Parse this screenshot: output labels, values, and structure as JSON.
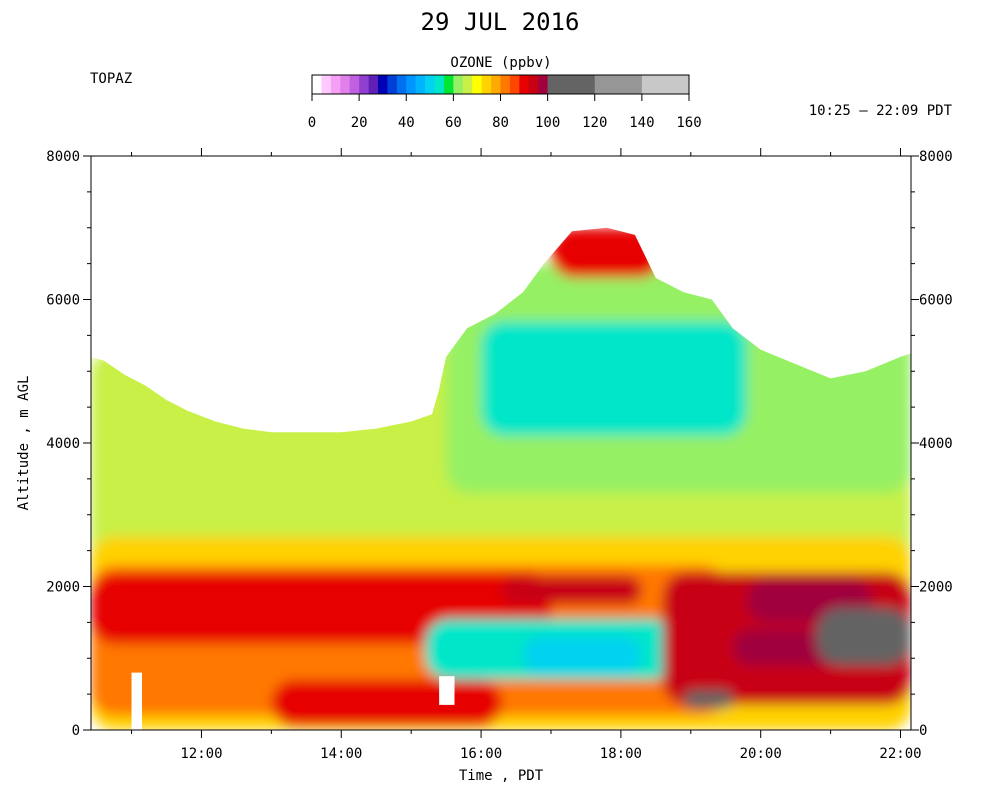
{
  "chart_data": {
    "type": "heatmap",
    "title": "29 JUL 2016",
    "site": "TOPAZ",
    "time_range_text": "10:25 – 22:09 PDT",
    "xlabel": "Time , PDT",
    "ylabel": "Altitude , m AGL",
    "x_range_hours": [
      10.42,
      22.15
    ],
    "x_ticks": [
      {
        "value": 12,
        "label": "12:00"
      },
      {
        "value": 14,
        "label": "14:00"
      },
      {
        "value": 16,
        "label": "16:00"
      },
      {
        "value": 18,
        "label": "18:00"
      },
      {
        "value": 20,
        "label": "20:00"
      },
      {
        "value": 22,
        "label": "22:00"
      }
    ],
    "ylim": [
      0,
      8000
    ],
    "y_ticks": [
      0,
      2000,
      4000,
      6000,
      8000
    ],
    "colorbar": {
      "title": "OZONE (ppbv)",
      "ticks": [
        0,
        20,
        40,
        60,
        80,
        100,
        120,
        140,
        160
      ],
      "bins": [
        {
          "from": 0,
          "to": 4,
          "color": "#ffffff"
        },
        {
          "from": 4,
          "to": 8,
          "color": "#ffc8ff"
        },
        {
          "from": 8,
          "to": 12,
          "color": "#f5a0f5"
        },
        {
          "from": 12,
          "to": 16,
          "color": "#e080e8"
        },
        {
          "from": 16,
          "to": 20,
          "color": "#c060e0"
        },
        {
          "from": 20,
          "to": 24,
          "color": "#9040d0"
        },
        {
          "from": 24,
          "to": 28,
          "color": "#6020b8"
        },
        {
          "from": 28,
          "to": 32,
          "color": "#0000b4"
        },
        {
          "from": 32,
          "to": 36,
          "color": "#0040d8"
        },
        {
          "from": 36,
          "to": 40,
          "color": "#0070ee"
        },
        {
          "from": 40,
          "to": 44,
          "color": "#0096ff"
        },
        {
          "from": 44,
          "to": 48,
          "color": "#00b4ff"
        },
        {
          "from": 48,
          "to": 52,
          "color": "#00d2f0"
        },
        {
          "from": 52,
          "to": 56,
          "color": "#00e6c8"
        },
        {
          "from": 56,
          "to": 60,
          "color": "#00e632"
        },
        {
          "from": 60,
          "to": 64,
          "color": "#96f064"
        },
        {
          "from": 64,
          "to": 68,
          "color": "#c8f046"
        },
        {
          "from": 68,
          "to": 72,
          "color": "#ffff00"
        },
        {
          "from": 72,
          "to": 76,
          "color": "#ffd200"
        },
        {
          "from": 76,
          "to": 80,
          "color": "#ffaa00"
        },
        {
          "from": 80,
          "to": 84,
          "color": "#ff7800"
        },
        {
          "from": 84,
          "to": 88,
          "color": "#ff4600"
        },
        {
          "from": 88,
          "to": 92,
          "color": "#e60000"
        },
        {
          "from": 92,
          "to": 96,
          "color": "#c80014"
        },
        {
          "from": 96,
          "to": 100,
          "color": "#a0003c"
        },
        {
          "from": 100,
          "to": 120,
          "color": "#646464"
        },
        {
          "from": 120,
          "to": 140,
          "color": "#969696"
        },
        {
          "from": 140,
          "to": 160,
          "color": "#c8c8c8"
        }
      ]
    },
    "data_top_profile": [
      [
        10.42,
        5200
      ],
      [
        10.6,
        5150
      ],
      [
        10.9,
        4950
      ],
      [
        11.2,
        4800
      ],
      [
        11.5,
        4600
      ],
      [
        11.8,
        4450
      ],
      [
        12.2,
        4300
      ],
      [
        12.6,
        4200
      ],
      [
        13.0,
        4150
      ],
      [
        13.5,
        4150
      ],
      [
        14.0,
        4150
      ],
      [
        14.5,
        4200
      ],
      [
        15.0,
        4300
      ],
      [
        15.3,
        4400
      ],
      [
        15.4,
        4750
      ],
      [
        15.5,
        5200
      ],
      [
        15.8,
        5600
      ],
      [
        16.2,
        5800
      ],
      [
        16.6,
        6100
      ],
      [
        16.9,
        6500
      ],
      [
        17.3,
        6950
      ],
      [
        17.8,
        7000
      ],
      [
        18.2,
        6900
      ],
      [
        18.5,
        6300
      ],
      [
        18.9,
        6100
      ],
      [
        19.3,
        6000
      ],
      [
        19.6,
        5600
      ],
      [
        20.0,
        5300
      ],
      [
        20.5,
        5100
      ],
      [
        21.0,
        4900
      ],
      [
        21.5,
        5000
      ],
      [
        22.0,
        5200
      ],
      [
        22.15,
        5250
      ]
    ],
    "ozone_features": [
      {
        "t": [
          10.42,
          22.15
        ],
        "z": [
          0,
          5300
        ],
        "ppbv": 66
      },
      {
        "t": [
          10.42,
          22.15
        ],
        "z": [
          0,
          2700
        ],
        "ppbv": 72
      },
      {
        "t": [
          15.5,
          22.15
        ],
        "z": [
          3300,
          6500
        ],
        "ppbv": 60
      },
      {
        "t": [
          16.0,
          19.8
        ],
        "z": [
          4100,
          5700
        ],
        "ppbv": 52
      },
      {
        "t": [
          10.42,
          19.5
        ],
        "z": [
          200,
          2300
        ],
        "ppbv": 82
      },
      {
        "t": [
          10.42,
          17.0
        ],
        "z": [
          1200,
          2200
        ],
        "ppbv": 90
      },
      {
        "t": [
          16.3,
          18.3
        ],
        "z": [
          1750,
          2150
        ],
        "ppbv": 92
      },
      {
        "t": [
          15.2,
          18.8
        ],
        "z": [
          700,
          1550
        ],
        "ppbv": 54
      },
      {
        "t": [
          16.6,
          18.3
        ],
        "z": [
          800,
          1300
        ],
        "ppbv": 48
      },
      {
        "t": [
          13.0,
          16.3
        ],
        "z": [
          50,
          700
        ],
        "ppbv": 90
      },
      {
        "t": [
          18.6,
          22.15
        ],
        "z": [
          350,
          2200
        ],
        "ppbv": 94
      },
      {
        "t": [
          19.8,
          21.6
        ],
        "z": [
          1500,
          2100
        ],
        "ppbv": 98
      },
      {
        "t": [
          19.6,
          21.5
        ],
        "z": [
          900,
          1400
        ],
        "ppbv": 98
      },
      {
        "t": [
          20.8,
          22.15
        ],
        "z": [
          900,
          1700
        ],
        "ppbv": 110
      },
      {
        "t": [
          18.9,
          19.6
        ],
        "z": [
          300,
          550
        ],
        "ppbv": 110
      },
      {
        "t": [
          17.0,
          18.6
        ],
        "z": [
          6300,
          7000
        ],
        "ppbv": 88
      },
      {
        "t": [
          11.0,
          11.15
        ],
        "z": [
          0,
          800
        ],
        "ppbv": 0
      },
      {
        "t": [
          15.4,
          15.62
        ],
        "z": [
          350,
          750
        ],
        "ppbv": 0
      }
    ]
  }
}
